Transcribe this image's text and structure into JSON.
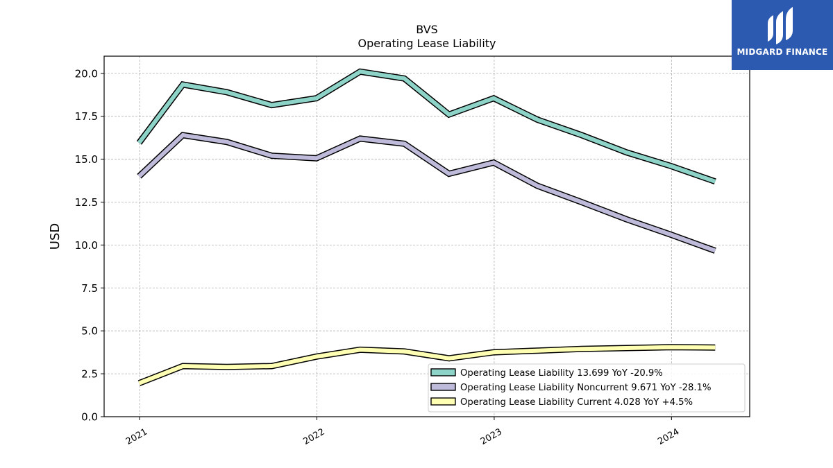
{
  "brand": {
    "name": "MIDGARD FINANCE",
    "logo_bg": "#2b5ab0"
  },
  "chart_data": {
    "type": "line",
    "title": "BVS",
    "subtitle": "Operating Lease Liability",
    "xlabel": "",
    "ylabel": "USD",
    "ylim": [
      0,
      21
    ],
    "yticks": [
      0.0,
      2.5,
      5.0,
      7.5,
      10.0,
      12.5,
      15.0,
      17.5,
      20.0
    ],
    "ytick_labels": [
      "0.0",
      "2.5",
      "5.0",
      "7.5",
      "10.0",
      "12.5",
      "15.0",
      "17.5",
      "20.0"
    ],
    "xlim": [
      "2020-10-20",
      "2024-06-10"
    ],
    "xticks": [
      "2021-01-01",
      "2022-01-01",
      "2023-01-01",
      "2024-01-01"
    ],
    "xtick_labels": [
      "2021",
      "2022",
      "2023",
      "2024"
    ],
    "grid": true,
    "legend_position": "lower-right",
    "x": [
      "2020-12-31",
      "2021-03-31",
      "2021-06-30",
      "2021-09-30",
      "2021-12-31",
      "2022-03-31",
      "2022-06-30",
      "2022-09-30",
      "2022-12-31",
      "2023-03-31",
      "2023-06-30",
      "2023-09-30",
      "2023-12-31",
      "2024-03-31"
    ],
    "series": [
      {
        "name": "Operating Lease Liability",
        "legend": "Operating Lease Liability  13.699 YoY -20.9%",
        "color": "#8dd3c7",
        "values": [
          15.95,
          19.35,
          18.9,
          18.15,
          18.55,
          20.1,
          19.7,
          17.6,
          18.55,
          17.3,
          16.4,
          15.4,
          14.6,
          13.7
        ]
      },
      {
        "name": "Operating Lease Liability Noncurrent",
        "legend": "Operating Lease Liability Noncurrent  9.671 YoY -28.1%",
        "color": "#bebada",
        "values": [
          14.0,
          16.4,
          16.0,
          15.2,
          15.05,
          16.2,
          15.9,
          14.15,
          14.8,
          13.45,
          12.5,
          11.5,
          10.6,
          9.67
        ]
      },
      {
        "name": "Operating Lease Liability Current",
        "legend": "Operating Lease Liability Current  4.028 YoY +4.5%",
        "color": "#ffffb3",
        "values": [
          1.95,
          2.95,
          2.9,
          2.95,
          3.5,
          3.9,
          3.8,
          3.4,
          3.75,
          3.85,
          3.95,
          4.0,
          4.05,
          4.03
        ]
      }
    ]
  }
}
